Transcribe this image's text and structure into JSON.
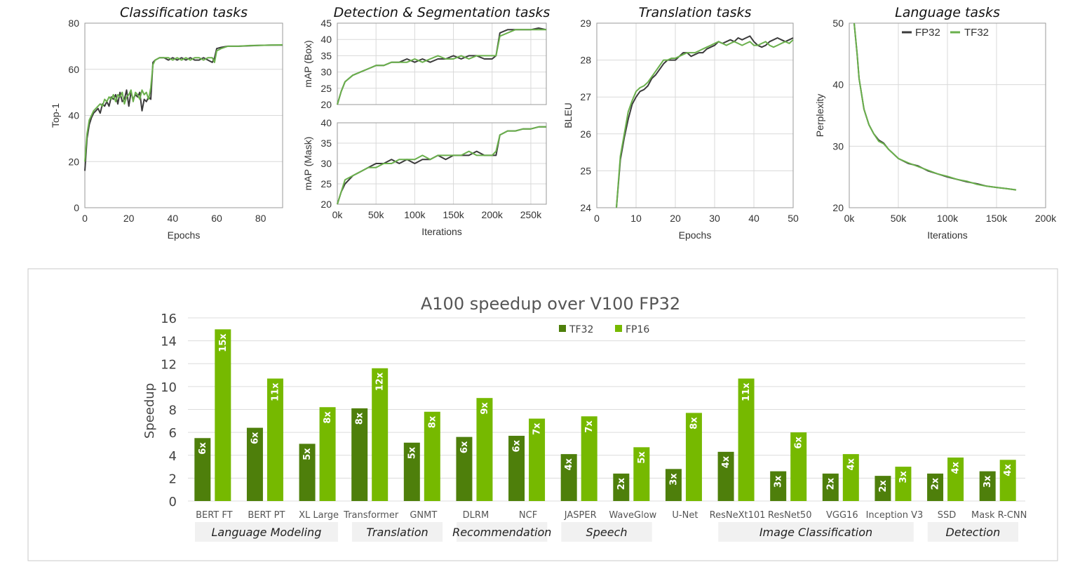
{
  "colors": {
    "fp32": "#3b3b3b",
    "tf32_line": "#6ab04c",
    "tf32_bar": "#4e7f0b",
    "fp16_bar": "#76b900",
    "grid": "#d9d9d9"
  },
  "chart_data": [
    {
      "type": "line",
      "title": "Classification tasks",
      "xlabel": "Epochs",
      "ylabel": "Top-1",
      "xlim": [
        0,
        90
      ],
      "ylim": [
        0,
        80
      ],
      "xticks": [
        "0",
        "20",
        "40",
        "60",
        "80"
      ],
      "yticks": [
        "0",
        "20",
        "40",
        "60",
        "80"
      ],
      "series": [
        {
          "name": "FP32",
          "x": [
            0,
            1,
            2,
            3,
            4,
            5,
            6,
            7,
            8,
            9,
            10,
            11,
            12,
            13,
            14,
            15,
            16,
            17,
            18,
            19,
            20,
            21,
            22,
            23,
            24,
            25,
            26,
            27,
            28,
            29,
            30,
            31,
            32,
            34,
            36,
            38,
            40,
            42,
            44,
            46,
            48,
            50,
            52,
            54,
            56,
            58,
            59,
            60,
            62,
            65,
            70,
            75,
            80,
            85,
            90
          ],
          "y": [
            16,
            30,
            36,
            39,
            41,
            42,
            43,
            41,
            45,
            44,
            46,
            44,
            48,
            47,
            49,
            45,
            50,
            46,
            47,
            51,
            44,
            50,
            47,
            49,
            48,
            50,
            42,
            47,
            46,
            48,
            47,
            63,
            64,
            65,
            65,
            64,
            65,
            64,
            65,
            64,
            65,
            64,
            64,
            65,
            64,
            63,
            65,
            69,
            69.5,
            70,
            70,
            70.2,
            70.4,
            70.5,
            70.5
          ]
        },
        {
          "name": "TF32",
          "x": [
            0,
            1,
            2,
            3,
            4,
            5,
            6,
            7,
            8,
            9,
            10,
            11,
            12,
            13,
            14,
            15,
            16,
            17,
            18,
            19,
            20,
            21,
            22,
            23,
            24,
            25,
            26,
            27,
            28,
            29,
            30,
            31,
            32,
            34,
            36,
            38,
            40,
            42,
            44,
            46,
            48,
            50,
            52,
            54,
            56,
            58,
            59,
            60,
            62,
            65,
            70,
            75,
            80,
            85,
            90
          ],
          "y": [
            20,
            32,
            38,
            40,
            42,
            43,
            44,
            45,
            44,
            47,
            46,
            48,
            47,
            49,
            46,
            49,
            48,
            50,
            45,
            48,
            49,
            51,
            46,
            50,
            49,
            47,
            51,
            49,
            50,
            47,
            52,
            62,
            64,
            65,
            65,
            65,
            64,
            65,
            64,
            65,
            64,
            65,
            65,
            64,
            65,
            65,
            63,
            68,
            69,
            70,
            70,
            70.3,
            70.4,
            70.5,
            70.6
          ]
        }
      ]
    },
    {
      "type": "line",
      "title": "Detection & Segmentation tasks",
      "xlabel": "Iterations",
      "ylabel": "mAP (Box)",
      "xlim": [
        0,
        270000
      ],
      "ylim": [
        20,
        45
      ],
      "xticks": [],
      "yticks": [
        "20",
        "25",
        "30",
        "35",
        "40",
        "45"
      ],
      "series": [
        {
          "name": "FP32",
          "x": [
            0,
            5000,
            10000,
            20000,
            30000,
            40000,
            50000,
            60000,
            70000,
            80000,
            90000,
            100000,
            110000,
            120000,
            130000,
            140000,
            150000,
            160000,
            170000,
            180000,
            190000,
            200000,
            205000,
            210000,
            220000,
            230000,
            240000,
            250000,
            260000,
            270000
          ],
          "y": [
            20,
            24,
            27,
            29,
            30,
            31,
            32,
            32,
            33,
            33,
            34,
            33,
            34,
            33,
            34,
            34,
            35,
            34,
            35,
            35,
            34,
            34,
            35,
            42,
            43,
            43,
            43,
            43,
            43.5,
            43
          ]
        },
        {
          "name": "TF32",
          "x": [
            0,
            5000,
            10000,
            20000,
            30000,
            40000,
            50000,
            60000,
            70000,
            80000,
            90000,
            100000,
            110000,
            120000,
            130000,
            140000,
            150000,
            160000,
            170000,
            180000,
            190000,
            200000,
            205000,
            210000,
            220000,
            230000,
            240000,
            250000,
            260000,
            270000
          ],
          "y": [
            20,
            24,
            27,
            29,
            30,
            31,
            32,
            32,
            33,
            33,
            33,
            34,
            33,
            34,
            35,
            34,
            34,
            35,
            34,
            35,
            35,
            35,
            35,
            41,
            42,
            43,
            43,
            43,
            43,
            43
          ]
        }
      ]
    },
    {
      "type": "line",
      "xlabel": "Iterations",
      "ylabel": "mAP (Mask)",
      "xlim": [
        0,
        270000
      ],
      "ylim": [
        20,
        40
      ],
      "xticks": [
        "0k",
        "50k",
        "100k",
        "150k",
        "200k",
        "250k"
      ],
      "yticks": [
        "20",
        "25",
        "30",
        "35",
        "40"
      ],
      "series": [
        {
          "name": "FP32",
          "x": [
            0,
            5000,
            10000,
            20000,
            30000,
            40000,
            50000,
            60000,
            70000,
            80000,
            90000,
            100000,
            110000,
            120000,
            130000,
            140000,
            150000,
            160000,
            170000,
            180000,
            190000,
            200000,
            205000,
            210000,
            220000,
            230000,
            240000,
            250000,
            260000,
            270000
          ],
          "y": [
            20,
            23,
            25,
            27,
            28,
            29,
            30,
            30,
            31,
            30,
            31,
            30,
            31,
            31,
            32,
            31,
            32,
            32,
            32,
            33,
            32,
            32,
            32,
            37,
            38,
            38,
            38.5,
            38.5,
            39,
            39
          ]
        },
        {
          "name": "TF32",
          "x": [
            0,
            5000,
            10000,
            20000,
            30000,
            40000,
            50000,
            60000,
            70000,
            80000,
            90000,
            100000,
            110000,
            120000,
            130000,
            140000,
            150000,
            160000,
            170000,
            180000,
            190000,
            200000,
            205000,
            210000,
            220000,
            230000,
            240000,
            250000,
            260000,
            270000
          ],
          "y": [
            20,
            23,
            26,
            27,
            28,
            29,
            29,
            30,
            30,
            31,
            31,
            31,
            32,
            31,
            32,
            32,
            32,
            32,
            33,
            32,
            32,
            32,
            33,
            37,
            38,
            38,
            38.5,
            38.5,
            39,
            39
          ]
        }
      ]
    },
    {
      "type": "line",
      "title": "Translation tasks",
      "xlabel": "Epochs",
      "ylabel": "BLEU",
      "xlim": [
        0,
        50
      ],
      "ylim": [
        24,
        29
      ],
      "xticks": [
        "0",
        "10",
        "20",
        "30",
        "40",
        "50"
      ],
      "yticks": [
        "24",
        "25",
        "26",
        "27",
        "28",
        "29"
      ],
      "series": [
        {
          "name": "FP32",
          "x": [
            5,
            6,
            7,
            8,
            9,
            10,
            11,
            12,
            13,
            14,
            15,
            16,
            17,
            18,
            19,
            20,
            21,
            22,
            23,
            24,
            25,
            26,
            27,
            28,
            29,
            30,
            31,
            32,
            33,
            34,
            35,
            36,
            37,
            38,
            39,
            40,
            41,
            42,
            43,
            44,
            45,
            46,
            47,
            48,
            49,
            50
          ],
          "y": [
            24,
            25.3,
            25.9,
            26.4,
            26.8,
            27.0,
            27.15,
            27.2,
            27.3,
            27.5,
            27.6,
            27.75,
            27.9,
            28.0,
            28.0,
            28.0,
            28.1,
            28.2,
            28.2,
            28.1,
            28.15,
            28.2,
            28.2,
            28.3,
            28.35,
            28.4,
            28.5,
            28.45,
            28.5,
            28.55,
            28.5,
            28.6,
            28.55,
            28.6,
            28.65,
            28.5,
            28.4,
            28.35,
            28.4,
            28.5,
            28.55,
            28.6,
            28.55,
            28.5,
            28.55,
            28.6
          ]
        },
        {
          "name": "TF32",
          "x": [
            5,
            6,
            7,
            8,
            9,
            10,
            11,
            12,
            13,
            14,
            15,
            16,
            17,
            18,
            19,
            20,
            21,
            22,
            23,
            24,
            25,
            26,
            27,
            28,
            29,
            30,
            31,
            32,
            33,
            34,
            35,
            36,
            37,
            38,
            39,
            40,
            41,
            42,
            43,
            44,
            45,
            46,
            47,
            48,
            49,
            50
          ],
          "y": [
            24,
            25.4,
            26.0,
            26.6,
            26.9,
            27.15,
            27.25,
            27.3,
            27.4,
            27.55,
            27.7,
            27.85,
            28.0,
            28.0,
            28.05,
            28.05,
            28.1,
            28.15,
            28.2,
            28.2,
            28.2,
            28.25,
            28.3,
            28.35,
            28.4,
            28.45,
            28.5,
            28.45,
            28.4,
            28.45,
            28.5,
            28.45,
            28.4,
            28.45,
            28.5,
            28.4,
            28.4,
            28.45,
            28.5,
            28.4,
            28.35,
            28.4,
            28.45,
            28.5,
            28.45,
            28.55
          ]
        }
      ]
    },
    {
      "type": "line",
      "title": "Language tasks",
      "xlabel": "Iterations",
      "ylabel": "Perplexity",
      "xlim": [
        0,
        200000
      ],
      "ylim": [
        20,
        50
      ],
      "xticks": [
        "0k",
        "50k",
        "100k",
        "150k",
        "200k"
      ],
      "yticks": [
        "20",
        "30",
        "40",
        "50"
      ],
      "legend": [
        "FP32",
        "TF32"
      ],
      "series": [
        {
          "name": "FP32",
          "x": [
            5000,
            8000,
            10000,
            15000,
            20000,
            25000,
            30000,
            35000,
            40000,
            50000,
            60000,
            70000,
            80000,
            90000,
            100000,
            110000,
            120000,
            130000,
            140000,
            150000,
            160000,
            170000
          ],
          "y": [
            50,
            45,
            41,
            36,
            33.5,
            32,
            31,
            30.5,
            29.5,
            28,
            27.2,
            26.8,
            26,
            25.5,
            25,
            24.6,
            24.2,
            23.9,
            23.5,
            23.3,
            23.1,
            22.9
          ]
        },
        {
          "name": "TF32",
          "x": [
            5000,
            8000,
            10000,
            15000,
            20000,
            25000,
            30000,
            35000,
            40000,
            50000,
            60000,
            70000,
            80000,
            90000,
            100000,
            110000,
            120000,
            130000,
            140000,
            150000,
            160000,
            170000
          ],
          "y": [
            50,
            45,
            41,
            36,
            33.5,
            32,
            30.8,
            30.4,
            29.5,
            28,
            27.3,
            26.7,
            26.1,
            25.5,
            25.1,
            24.6,
            24.3,
            23.8,
            23.5,
            23.3,
            23.1,
            22.9
          ]
        }
      ]
    },
    {
      "type": "bar",
      "title": "A100 speedup over V100 FP32",
      "ylabel": "Speedup",
      "ylim": [
        0,
        16
      ],
      "yticks": [
        "0",
        "2",
        "4",
        "6",
        "8",
        "10",
        "12",
        "14",
        "16"
      ],
      "categories": [
        "BERT FT",
        "BERT PT",
        "XL Large",
        "Transformer",
        "GNMT",
        "DLRM",
        "NCF",
        "JASPER",
        "WaveGlow",
        "U-Net",
        "ResNeXt101",
        "ResNet50",
        "VGG16",
        "Inception V3",
        "SSD",
        "Mask R-CNN"
      ],
      "groups": [
        {
          "label": "Language Modeling",
          "from": 0,
          "to": 2
        },
        {
          "label": "Translation",
          "from": 3,
          "to": 4
        },
        {
          "label": "Recommendation",
          "from": 5,
          "to": 6
        },
        {
          "label": "Speech",
          "from": 7,
          "to": 8
        },
        {
          "label": "Image Classification",
          "from": 10,
          "to": 13
        },
        {
          "label": "Detection",
          "from": 14,
          "to": 15
        }
      ],
      "series": [
        {
          "name": "TF32",
          "values": [
            5.5,
            6.4,
            5.0,
            8.1,
            5.1,
            5.6,
            5.7,
            4.1,
            2.4,
            2.8,
            4.3,
            2.6,
            2.4,
            2.2,
            2.4,
            2.6
          ],
          "labels": [
            "6x",
            "6x",
            "5x",
            "8x",
            "5x",
            "6x",
            "6x",
            "4x",
            "2x",
            "3x",
            "4x",
            "3x",
            "2x",
            "2x",
            "2x",
            "3x"
          ]
        },
        {
          "name": "FP16",
          "values": [
            15.0,
            10.7,
            8.2,
            11.6,
            7.8,
            9.0,
            7.2,
            7.4,
            4.7,
            7.7,
            10.7,
            6.0,
            4.1,
            3.0,
            3.8,
            3.6
          ],
          "labels": [
            "15x",
            "11x",
            "8x",
            "12x",
            "8x",
            "9x",
            "7x",
            "7x",
            "5x",
            "8x",
            "11x",
            "6x",
            "4x",
            "3x",
            "4x",
            "4x"
          ]
        }
      ]
    }
  ]
}
